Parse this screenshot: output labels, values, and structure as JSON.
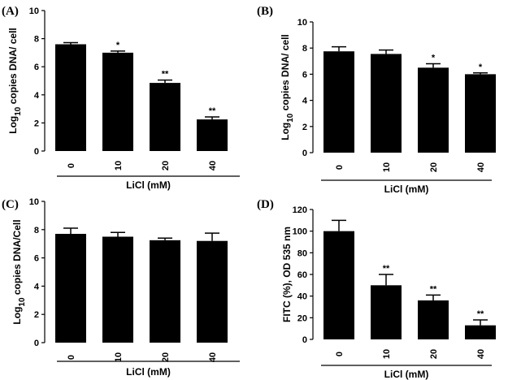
{
  "chart_data": [
    {
      "panel": "(A)",
      "type": "bar",
      "categories": [
        "0",
        "10",
        "20",
        "40"
      ],
      "values": [
        7.6,
        7.0,
        4.85,
        2.25
      ],
      "errors": [
        0.12,
        0.12,
        0.2,
        0.18
      ],
      "significance": [
        "",
        "*",
        "**",
        "**"
      ],
      "ylabel_main": "Log",
      "ylabel_sub": "10",
      "ylabel_rest": " copies DNA/ cell",
      "xlabel": "LiCl (mM)",
      "ylim": [
        0,
        10
      ],
      "yticks": [
        "0",
        "2",
        "4",
        "6",
        "8",
        "10"
      ]
    },
    {
      "panel": "(B)",
      "type": "bar",
      "categories": [
        "0",
        "10",
        "20",
        "40"
      ],
      "values": [
        7.75,
        7.55,
        6.5,
        6.0
      ],
      "errors": [
        0.35,
        0.3,
        0.3,
        0.1
      ],
      "significance": [
        "",
        "",
        "*",
        "*"
      ],
      "ylabel_main": "Log",
      "ylabel_sub": "10",
      "ylabel_rest": " copies DNA/ cell",
      "xlabel": "LiCl (mM)",
      "ylim": [
        0,
        10
      ],
      "yticks": [
        "0",
        "2",
        "4",
        "6",
        "8",
        "10"
      ]
    },
    {
      "panel": "(C)",
      "type": "bar",
      "categories": [
        "0",
        "10",
        "20",
        "40"
      ],
      "values": [
        7.7,
        7.5,
        7.25,
        7.2
      ],
      "errors": [
        0.4,
        0.3,
        0.15,
        0.55
      ],
      "significance": [
        "",
        "",
        "",
        ""
      ],
      "ylabel_main": "Log",
      "ylabel_sub": "10",
      "ylabel_rest": " copies DNA/Cell",
      "xlabel": "LiCl (mM)",
      "ylim": [
        0,
        10
      ],
      "yticks": [
        "0",
        "2",
        "4",
        "6",
        "8",
        "10"
      ]
    },
    {
      "panel": "(D)",
      "type": "bar",
      "categories": [
        "0",
        "10",
        "20",
        "40"
      ],
      "values": [
        100,
        50,
        36,
        13
      ],
      "errors": [
        10,
        10,
        5,
        5
      ],
      "significance": [
        "",
        "**",
        "**",
        "**"
      ],
      "ylabel_main": "FITC (%), OD 535 nm",
      "ylabel_sub": "",
      "ylabel_rest": "",
      "xlabel": "LiCl (mM)",
      "ylim": [
        0,
        120
      ],
      "yticks": [
        "0",
        "20",
        "40",
        "60",
        "80",
        "100",
        "120"
      ]
    }
  ]
}
